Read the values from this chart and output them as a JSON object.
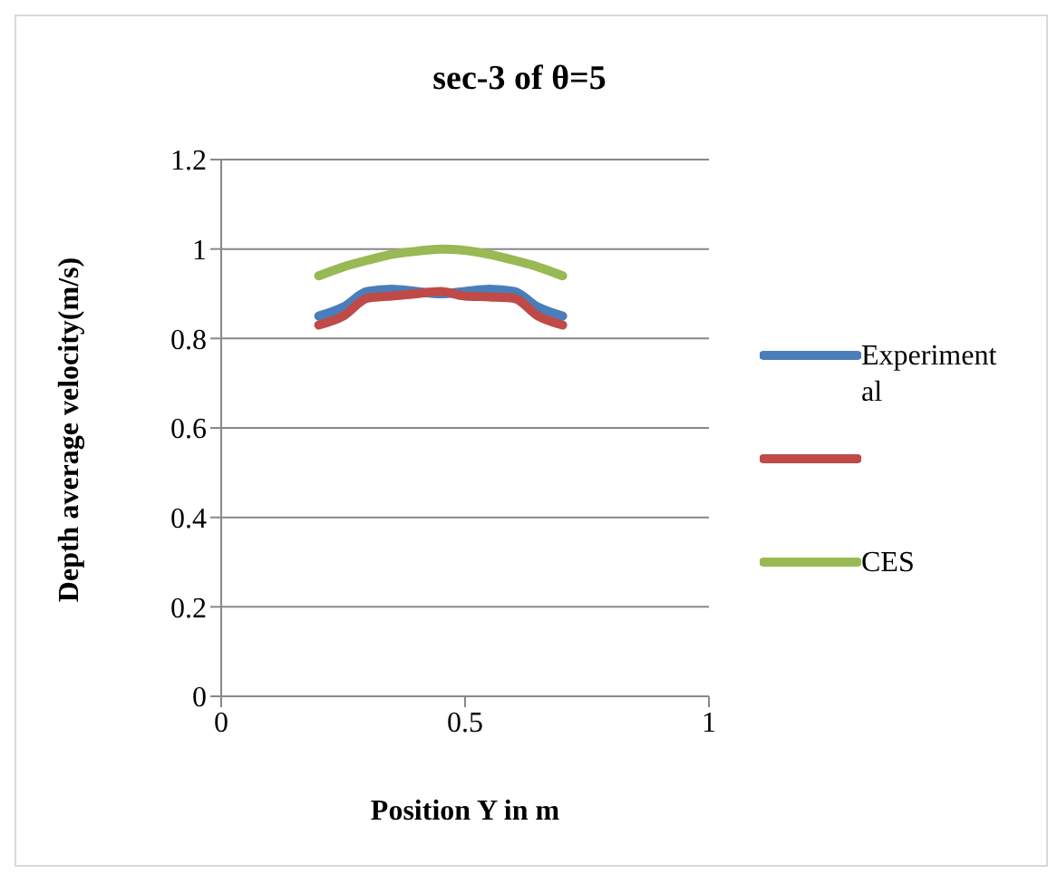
{
  "chart_data": {
    "type": "line",
    "title": "sec-3 of θ=5",
    "xlabel": "Position Y in m",
    "ylabel": "Depth average velocity(m/s)",
    "x": [
      0.2,
      0.25,
      0.3,
      0.35,
      0.4,
      0.45,
      0.5,
      0.55,
      0.6,
      0.65,
      0.7
    ],
    "series": [
      {
        "name": "Experimental",
        "color": "#4a7ebb",
        "values": [
          0.85,
          0.87,
          0.905,
          0.91,
          0.905,
          0.9,
          0.905,
          0.91,
          0.905,
          0.87,
          0.85
        ]
      },
      {
        "color": "#be4b48",
        "values": [
          0.83,
          0.85,
          0.89,
          0.895,
          0.9,
          0.905,
          0.895,
          0.893,
          0.89,
          0.85,
          0.83
        ]
      },
      {
        "name": "CES",
        "color": "#98b954",
        "values": [
          0.94,
          0.96,
          0.975,
          0.988,
          0.995,
          1.0,
          0.997,
          0.988,
          0.975,
          0.96,
          0.94
        ]
      }
    ],
    "xlim": [
      0,
      1
    ],
    "xticks": [
      0,
      0.5,
      1
    ],
    "ylim": [
      0,
      1.2
    ],
    "yticks": [
      0,
      0.2,
      0.4,
      0.6,
      0.8,
      1,
      1.2
    ],
    "grid": "y",
    "legend": "right",
    "marker": "none",
    "line_style": "solid"
  }
}
